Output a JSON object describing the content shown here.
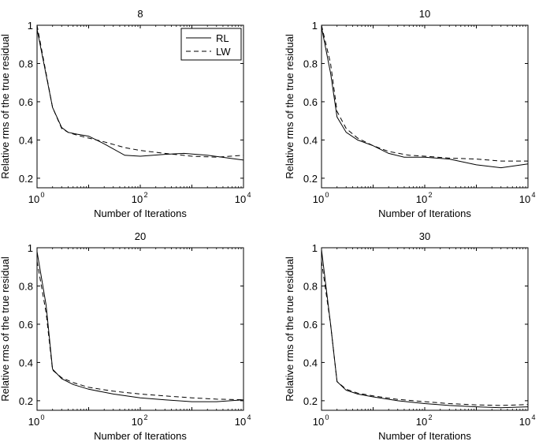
{
  "chart_data": [
    {
      "type": "line",
      "title": "8",
      "xlabel": "Number of Iterations",
      "ylabel": "Relative rms of the true residual",
      "xscale": "log",
      "xlim": [
        1,
        10000
      ],
      "ylim": [
        0.15,
        1.0
      ],
      "xticks": [
        {
          "v": 1,
          "base": "10",
          "exp": "0"
        },
        {
          "v": 100,
          "base": "10",
          "exp": "2"
        },
        {
          "v": 10000,
          "base": "10",
          "exp": "4"
        }
      ],
      "yticks": [
        {
          "v": 0.2,
          "label": "0.2"
        },
        {
          "v": 0.4,
          "label": "0.4"
        },
        {
          "v": 0.6,
          "label": "0.6"
        },
        {
          "v": 0.8,
          "label": "0.8"
        },
        {
          "v": 1.0,
          "label": "1"
        }
      ],
      "legend": {
        "position": "top-right",
        "entries": [
          {
            "name": "RL",
            "style": "solid"
          },
          {
            "name": "LW",
            "style": "dashed"
          }
        ]
      },
      "series": [
        {
          "name": "RL",
          "style": "solid",
          "x": [
            1,
            2,
            3,
            4,
            6,
            10,
            20,
            50,
            100,
            300,
            700,
            2000,
            10000
          ],
          "y": [
            0.98,
            0.57,
            0.465,
            0.44,
            0.43,
            0.42,
            0.38,
            0.32,
            0.315,
            0.325,
            0.33,
            0.32,
            0.295
          ]
        },
        {
          "name": "LW",
          "style": "dashed",
          "x": [
            1,
            2,
            3,
            4,
            6,
            10,
            20,
            50,
            100,
            300,
            1000,
            3000,
            10000
          ],
          "y": [
            1.0,
            0.57,
            0.46,
            0.44,
            0.425,
            0.41,
            0.39,
            0.36,
            0.345,
            0.33,
            0.315,
            0.31,
            0.32
          ]
        }
      ]
    },
    {
      "type": "line",
      "title": "10",
      "xlabel": "Number of Iterations",
      "ylabel": "Relative rms of the true residual",
      "xscale": "log",
      "xlim": [
        1,
        10000
      ],
      "ylim": [
        0.15,
        1.0
      ],
      "xticks": [
        {
          "v": 1,
          "base": "10",
          "exp": "0"
        },
        {
          "v": 100,
          "base": "10",
          "exp": "2"
        },
        {
          "v": 10000,
          "base": "10",
          "exp": "4"
        }
      ],
      "yticks": [
        {
          "v": 0.2,
          "label": "0.2"
        },
        {
          "v": 0.4,
          "label": "0.4"
        },
        {
          "v": 0.6,
          "label": "0.6"
        },
        {
          "v": 0.8,
          "label": "0.8"
        },
        {
          "v": 1.0,
          "label": "1"
        }
      ],
      "series": [
        {
          "name": "RL",
          "style": "solid",
          "x": [
            1,
            1.5,
            2,
            3,
            5,
            10,
            20,
            40,
            100,
            300,
            1000,
            3000,
            10000
          ],
          "y": [
            0.99,
            0.75,
            0.52,
            0.44,
            0.4,
            0.37,
            0.33,
            0.31,
            0.31,
            0.3,
            0.27,
            0.255,
            0.275
          ]
        },
        {
          "name": "LW",
          "style": "dashed",
          "x": [
            1,
            1.5,
            2,
            3,
            5,
            10,
            20,
            50,
            100,
            300,
            1000,
            3000,
            10000
          ],
          "y": [
            1.0,
            0.8,
            0.55,
            0.46,
            0.41,
            0.37,
            0.34,
            0.32,
            0.315,
            0.305,
            0.3,
            0.29,
            0.29
          ]
        }
      ]
    },
    {
      "type": "line",
      "title": "20",
      "xlabel": "Number of Iterations",
      "ylabel": "Relative rms of the true residual",
      "xscale": "log",
      "xlim": [
        1,
        10000
      ],
      "ylim": [
        0.15,
        1.0
      ],
      "xticks": [
        {
          "v": 1,
          "base": "10",
          "exp": "0"
        },
        {
          "v": 100,
          "base": "10",
          "exp": "2"
        },
        {
          "v": 10000,
          "base": "10",
          "exp": "4"
        }
      ],
      "yticks": [
        {
          "v": 0.2,
          "label": "0.2"
        },
        {
          "v": 0.4,
          "label": "0.4"
        },
        {
          "v": 0.6,
          "label": "0.6"
        },
        {
          "v": 0.8,
          "label": "0.8"
        },
        {
          "v": 1.0,
          "label": "1"
        }
      ],
      "series": [
        {
          "name": "RL",
          "style": "solid",
          "x": [
            1,
            1.5,
            2,
            3,
            5,
            10,
            30,
            100,
            300,
            1000,
            3000,
            10000
          ],
          "y": [
            0.98,
            0.7,
            0.365,
            0.315,
            0.285,
            0.26,
            0.235,
            0.215,
            0.205,
            0.195,
            0.195,
            0.205
          ]
        },
        {
          "name": "LW",
          "style": "dashed",
          "x": [
            1,
            1.5,
            2,
            3,
            5,
            10,
            30,
            100,
            300,
            1000,
            3000,
            10000
          ],
          "y": [
            0.93,
            0.66,
            0.36,
            0.32,
            0.295,
            0.27,
            0.25,
            0.235,
            0.225,
            0.215,
            0.208,
            0.205
          ]
        }
      ]
    },
    {
      "type": "line",
      "title": "30",
      "xlabel": "Number of Iterations",
      "ylabel": "Relative rms of the true residual",
      "xscale": "log",
      "xlim": [
        1,
        10000
      ],
      "ylim": [
        0.15,
        1.0
      ],
      "xticks": [
        {
          "v": 1,
          "base": "10",
          "exp": "0"
        },
        {
          "v": 100,
          "base": "10",
          "exp": "2"
        },
        {
          "v": 10000,
          "base": "10",
          "exp": "4"
        }
      ],
      "yticks": [
        {
          "v": 0.2,
          "label": "0.2"
        },
        {
          "v": 0.4,
          "label": "0.4"
        },
        {
          "v": 0.6,
          "label": "0.6"
        },
        {
          "v": 0.8,
          "label": "0.8"
        },
        {
          "v": 1.0,
          "label": "1"
        }
      ],
      "series": [
        {
          "name": "RL",
          "style": "solid",
          "x": [
            1,
            1.5,
            2,
            3,
            5,
            10,
            30,
            100,
            300,
            1000,
            3000,
            10000
          ],
          "y": [
            0.99,
            0.6,
            0.3,
            0.255,
            0.235,
            0.22,
            0.2,
            0.185,
            0.175,
            0.168,
            0.163,
            0.168
          ]
        },
        {
          "name": "LW",
          "style": "dashed",
          "x": [
            1,
            1.5,
            2,
            3,
            5,
            10,
            30,
            100,
            300,
            1000,
            3000,
            10000
          ],
          "y": [
            0.93,
            0.6,
            0.3,
            0.26,
            0.24,
            0.225,
            0.207,
            0.195,
            0.185,
            0.178,
            0.175,
            0.18
          ]
        }
      ]
    }
  ]
}
